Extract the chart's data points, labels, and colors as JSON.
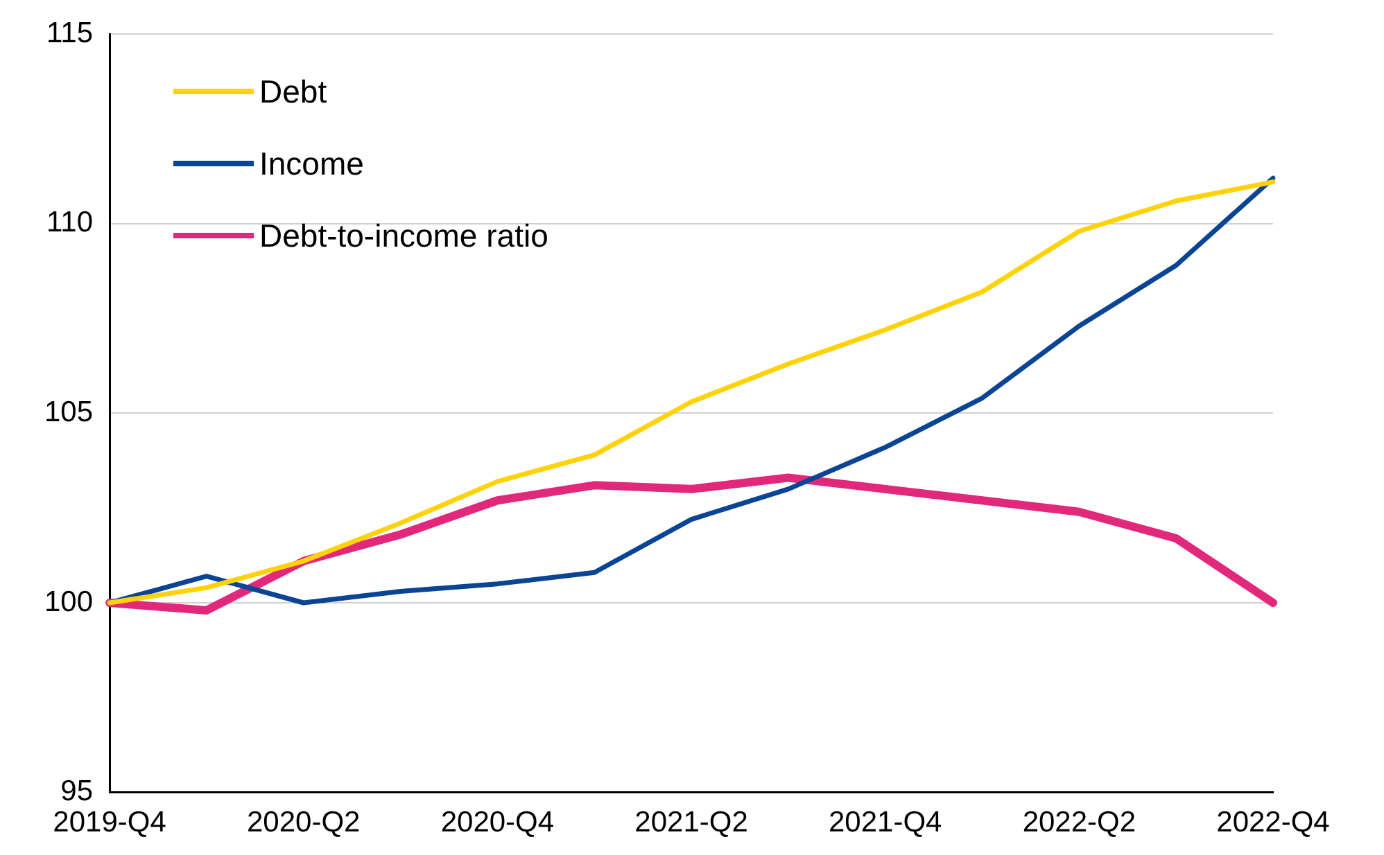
{
  "chart_data": {
    "type": "line",
    "categories": [
      "2019-Q4",
      null,
      "2020-Q2",
      null,
      "2020-Q4",
      null,
      "2021-Q2",
      null,
      "2021-Q4",
      null,
      "2022-Q2",
      null,
      "2022-Q4"
    ],
    "series": [
      {
        "name": "Debt",
        "color": "#ffd20a",
        "values": [
          100,
          100.4,
          101.1,
          102.1,
          103.2,
          103.9,
          105.3,
          106.3,
          107.2,
          108.2,
          109.8,
          110.6,
          111.1
        ]
      },
      {
        "name": "Income",
        "color": "#0a4595",
        "values": [
          100,
          100.7,
          100,
          100.3,
          100.5,
          100.8,
          102.2,
          103,
          104.1,
          105.4,
          107.3,
          108.9,
          111.2
        ]
      },
      {
        "name": "Debt-to-income ratio",
        "color": "#e2287b",
        "values": [
          100,
          99.8,
          101.1,
          101.8,
          102.7,
          103.1,
          103,
          103.3,
          103,
          102.7,
          102.4,
          101.7,
          100
        ]
      }
    ],
    "ylim": [
      95,
      115
    ],
    "yticks": [
      95,
      100,
      105,
      110,
      115
    ],
    "grid": "y",
    "legend": "top left",
    "marker": "none",
    "line_style": "solid"
  }
}
